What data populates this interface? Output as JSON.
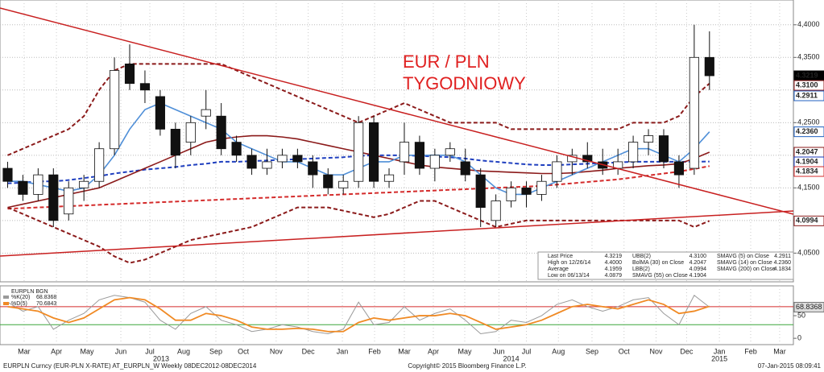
{
  "chart_data": {
    "type": "candlestick",
    "annotation": [
      "EUR / PLN",
      "TYGODNIOWY"
    ],
    "categories": [
      null,
      null,
      null,
      null,
      null,
      null,
      null,
      null,
      null,
      null,
      null,
      null,
      null,
      null,
      null,
      null,
      null,
      null,
      null,
      null,
      null,
      null,
      null,
      null,
      null,
      null,
      null,
      null,
      null,
      null,
      null,
      null,
      null,
      null,
      null,
      null,
      null,
      null,
      null,
      null,
      null,
      null,
      null,
      null,
      null,
      null,
      null
    ],
    "open": [
      4.18,
      4.16,
      4.14,
      4.17,
      4.11,
      4.15,
      4.16,
      4.21,
      4.34,
      4.31,
      4.29,
      4.24,
      4.22,
      4.26,
      4.26,
      4.22,
      4.2,
      4.18,
      4.19,
      4.2,
      4.19,
      4.17,
      4.15,
      4.16,
      4.25,
      4.16,
      4.19,
      4.22,
      4.18,
      4.2,
      4.19,
      4.17,
      4.1,
      4.13,
      4.15,
      4.14,
      4.16,
      4.19,
      4.2,
      4.19,
      4.18,
      4.19,
      4.22,
      4.23,
      4.19,
      4.18,
      4.35
    ],
    "high": [
      4.19,
      4.17,
      4.18,
      4.18,
      4.16,
      4.17,
      4.22,
      4.35,
      4.37,
      4.33,
      4.3,
      4.25,
      4.26,
      4.3,
      4.28,
      4.23,
      4.21,
      4.21,
      4.21,
      4.21,
      4.2,
      4.18,
      4.17,
      4.26,
      4.26,
      4.18,
      4.25,
      4.23,
      4.21,
      4.22,
      4.21,
      4.18,
      4.14,
      4.16,
      4.16,
      4.17,
      4.2,
      4.21,
      4.22,
      4.21,
      4.21,
      4.23,
      4.24,
      4.24,
      4.2,
      4.4,
      4.39
    ],
    "low": [
      4.15,
      4.13,
      4.13,
      4.09,
      4.1,
      4.13,
      4.15,
      4.2,
      4.3,
      4.28,
      4.23,
      4.18,
      4.2,
      4.24,
      4.2,
      4.19,
      4.17,
      4.17,
      4.18,
      4.18,
      4.15,
      4.14,
      4.14,
      4.15,
      4.15,
      4.15,
      4.17,
      4.17,
      4.16,
      4.19,
      4.16,
      4.09,
      4.09,
      4.12,
      4.12,
      4.13,
      4.15,
      4.17,
      4.18,
      4.17,
      4.17,
      4.18,
      4.2,
      4.18,
      4.15,
      4.17,
      4.3
    ],
    "close": [
      4.16,
      4.14,
      4.17,
      4.1,
      4.15,
      4.16,
      4.21,
      4.33,
      4.31,
      4.3,
      4.24,
      4.2,
      4.25,
      4.27,
      4.21,
      4.2,
      4.18,
      4.19,
      4.2,
      4.19,
      4.17,
      4.15,
      4.16,
      4.25,
      4.16,
      4.17,
      4.22,
      4.18,
      4.2,
      4.21,
      4.17,
      4.12,
      4.13,
      4.15,
      4.14,
      4.16,
      4.19,
      4.2,
      4.19,
      4.18,
      4.19,
      4.22,
      4.23,
      4.19,
      4.17,
      4.35,
      4.3219
    ],
    "series": [
      {
        "name": "SMAVG (55) on Close",
        "color": "#1f3fbf",
        "dash": true,
        "values": [
          4.157,
          4.158,
          4.16,
          4.16,
          4.162,
          4.165,
          4.168,
          4.172,
          4.175,
          4.178,
          4.18,
          4.182,
          4.185,
          4.187,
          4.19,
          4.19,
          4.191,
          4.192,
          4.193,
          4.194,
          4.195,
          4.196,
          4.197,
          4.199,
          4.2,
          4.2,
          4.2,
          4.199,
          4.198,
          4.197,
          4.195,
          4.192,
          4.19,
          4.188,
          4.186,
          4.185,
          4.185,
          4.186,
          4.187,
          4.188,
          4.189,
          4.19,
          4.19,
          4.19,
          4.19,
          4.19,
          4.1904
        ]
      },
      {
        "name": "SMAVG (200) on Close",
        "color": "#d42b2b",
        "dash": true,
        "values": [
          4.118,
          4.119,
          4.12,
          4.121,
          4.122,
          4.123,
          4.124,
          4.125,
          4.126,
          4.127,
          4.128,
          4.129,
          4.13,
          4.131,
          4.132,
          4.133,
          4.134,
          4.135,
          4.136,
          4.137,
          4.138,
          4.139,
          4.14,
          4.141,
          4.142,
          4.143,
          4.144,
          4.145,
          4.146,
          4.147,
          4.148,
          4.149,
          4.15,
          4.151,
          4.152,
          4.153,
          4.155,
          4.157,
          4.159,
          4.161,
          4.163,
          4.166,
          4.169,
          4.172,
          4.175,
          4.179,
          4.1834
        ]
      },
      {
        "name": "BolMA (30) on Close",
        "color": "#8b1a1a",
        "dash": false,
        "values": [
          4.12,
          4.125,
          4.13,
          4.135,
          4.14,
          4.145,
          4.15,
          4.16,
          4.17,
          4.18,
          4.19,
          4.2,
          4.21,
          4.22,
          4.225,
          4.228,
          4.23,
          4.23,
          4.228,
          4.225,
          4.22,
          4.215,
          4.21,
          4.205,
          4.2,
          4.195,
          4.19,
          4.185,
          4.182,
          4.18,
          4.178,
          4.176,
          4.175,
          4.174,
          4.173,
          4.172,
          4.172,
          4.173,
          4.175,
          4.177,
          4.18,
          4.182,
          4.184,
          4.185,
          4.187,
          4.195,
          4.2047
        ]
      },
      {
        "name": "UBB(2)",
        "color": "#8b1a1a",
        "dash": true,
        "values": [
          4.2,
          4.21,
          4.22,
          4.23,
          4.24,
          4.26,
          4.3,
          4.33,
          4.34,
          4.34,
          4.34,
          4.34,
          4.34,
          4.34,
          4.34,
          4.33,
          4.32,
          4.31,
          4.3,
          4.29,
          4.28,
          4.27,
          4.26,
          4.25,
          4.26,
          4.27,
          4.28,
          4.27,
          4.26,
          4.25,
          4.25,
          4.25,
          4.25,
          4.24,
          4.24,
          4.24,
          4.24,
          4.24,
          4.24,
          4.24,
          4.24,
          4.25,
          4.25,
          4.25,
          4.26,
          4.29,
          4.31
        ]
      },
      {
        "name": "LBB(2)",
        "color": "#8b1a1a",
        "dash": true,
        "values": [
          4.12,
          4.11,
          4.1,
          4.09,
          4.08,
          4.07,
          4.06,
          4.045,
          4.035,
          4.04,
          4.05,
          4.06,
          4.07,
          4.075,
          4.08,
          4.085,
          4.09,
          4.1,
          4.11,
          4.12,
          4.12,
          4.12,
          4.115,
          4.11,
          4.105,
          4.11,
          4.12,
          4.13,
          4.13,
          4.12,
          4.11,
          4.1,
          4.09,
          4.095,
          4.1,
          4.1,
          4.1,
          4.1,
          4.1,
          4.1,
          4.1,
          4.1,
          4.1,
          4.1,
          4.1,
          4.09,
          4.0994
        ]
      },
      {
        "name": "SMAVG (14) on Close",
        "color": "#4f8fd8",
        "dash": false,
        "values": [
          4.16,
          4.16,
          4.155,
          4.15,
          4.145,
          4.15,
          4.17,
          4.2,
          4.24,
          4.27,
          4.28,
          4.27,
          4.26,
          4.25,
          4.24,
          4.22,
          4.21,
          4.2,
          4.19,
          4.19,
          4.18,
          4.17,
          4.17,
          4.18,
          4.19,
          4.19,
          4.2,
          4.2,
          4.2,
          4.2,
          4.19,
          4.17,
          4.15,
          4.14,
          4.14,
          4.15,
          4.16,
          4.17,
          4.18,
          4.19,
          4.2,
          4.21,
          4.21,
          4.2,
          4.19,
          4.21,
          4.236
        ]
      }
    ],
    "xlim": [
      -0.5,
      51.5
    ],
    "ylim": [
      4.006,
      4.438
    ],
    "yticks": [
      {
        "value": 4.4,
        "label": "4,4000"
      },
      {
        "value": 4.35,
        "label": "4,3500"
      },
      {
        "value": 4.3,
        "label": "4,3000"
      },
      {
        "value": 4.25,
        "label": "4,2500"
      },
      {
        "value": 4.2,
        "label": "4,2000"
      },
      {
        "value": 4.15,
        "label": "4,1500"
      },
      {
        "value": 4.1,
        "label": "4,1000"
      },
      {
        "value": 4.05,
        "label": "4,0500"
      }
    ],
    "xticks": [
      {
        "value": 1.08,
        "label": "Mar"
      },
      {
        "value": 3.2,
        "label": "Apr"
      },
      {
        "value": 5.2,
        "label": "May"
      },
      {
        "value": 7.42,
        "label": "Jun"
      },
      {
        "value": 9.32,
        "label": "Jul"
      },
      {
        "value": 11.54,
        "label": "Aug"
      },
      {
        "value": 13.65,
        "label": "Sep"
      },
      {
        "value": 15.45,
        "label": "Oct"
      },
      {
        "value": 17.6,
        "label": "Nov"
      },
      {
        "value": 19.7,
        "label": "Dec"
      },
      {
        "value": 21.94,
        "label": "Jan"
      },
      {
        "value": 24.05,
        "label": "Feb"
      },
      {
        "value": 26.0,
        "label": "Mar"
      },
      {
        "value": 27.9,
        "label": "Apr"
      },
      {
        "value": 29.96,
        "label": "May"
      },
      {
        "value": 32.2,
        "label": "Jun"
      },
      {
        "value": 34.0,
        "label": "Jul"
      },
      {
        "value": 36.1,
        "label": "Aug"
      },
      {
        "value": 38.3,
        "label": "Sep"
      },
      {
        "value": 40.4,
        "label": "Oct"
      },
      {
        "value": 42.5,
        "label": "Nov"
      },
      {
        "value": 44.5,
        "label": "Dec"
      },
      {
        "value": 46.65,
        "label": "Jan"
      },
      {
        "value": 48.7,
        "label": "Feb"
      },
      {
        "value": 50.6,
        "label": "Mar"
      }
    ],
    "year_ticks": [
      {
        "value": 10.06,
        "label": "2013"
      },
      {
        "value": 33.0,
        "label": "2014"
      },
      {
        "value": 46.65,
        "label": "2015"
      }
    ],
    "grid": true,
    "price_labels": [
      {
        "value": 4.3219,
        "label": "4.3219",
        "color": "#000000"
      },
      {
        "value": 4.31,
        "label": "4.3100",
        "color": "#8b1a1a"
      },
      {
        "value": 4.2911,
        "label": "4.2911",
        "color": "#1f5fbf"
      },
      {
        "value": 4.236,
        "label": "4.2360",
        "color": "#1f5fbf"
      },
      {
        "value": 4.2047,
        "label": "4.2047",
        "color": "#8b1a1a"
      },
      {
        "value": 4.1904,
        "label": "4.1904",
        "color": "#1f3fbf"
      },
      {
        "value": 4.1834,
        "label": "4.1834",
        "color": "#d42b2b"
      },
      {
        "value": 4.0994,
        "label": "4.0994",
        "color": "#8b1a1a"
      }
    ],
    "legend": [
      [
        [
          "Last Price",
          "4.3219"
        ],
        [
          "High on 12/26/14",
          "4.4000"
        ],
        [
          "Average",
          "4.1959"
        ],
        [
          "Low on 06/13/14",
          "4.0879"
        ]
      ],
      [
        [
          "UBB(2)",
          "4.3100"
        ],
        [
          "BolMA (30) on Close",
          "4.2047"
        ],
        [
          "LBB(2)",
          "4.0994"
        ],
        [
          "SMAVG (55) on Close",
          "4.1904"
        ]
      ],
      [
        [
          "SMAVG (5) on Close",
          "4.2911"
        ],
        [
          "SMAVG (14) on Close",
          "4.2360"
        ],
        [
          "SMAVG (200) on Close",
          "4.1834"
        ]
      ]
    ],
    "lower": {
      "title": "EURPLN BGN",
      "ylim": [
        -14,
        116
      ],
      "yticks": [
        50,
        0
      ],
      "levels": [
        {
          "value": 70,
          "color": "#d42b2b"
        },
        {
          "value": 30,
          "color": "#3aa63a"
        }
      ],
      "series": [
        {
          "name": "%K(20)",
          "label": "68.8368",
          "color": "#9a9a9a",
          "values": [
            80,
            60,
            70,
            20,
            40,
            55,
            85,
            95,
            90,
            80,
            40,
            20,
            55,
            70,
            40,
            30,
            15,
            20,
            30,
            25,
            15,
            10,
            20,
            80,
            30,
            35,
            70,
            40,
            55,
            65,
            40,
            10,
            15,
            40,
            35,
            50,
            75,
            85,
            70,
            60,
            70,
            85,
            90,
            55,
            30,
            95,
            68.8368
          ]
        },
        {
          "name": "%D(5)",
          "label": "70.6843",
          "color": "#f08a24",
          "values": [
            70,
            65,
            60,
            45,
            35,
            45,
            65,
            85,
            90,
            85,
            65,
            40,
            40,
            55,
            50,
            40,
            25,
            20,
            20,
            22,
            20,
            15,
            15,
            35,
            45,
            40,
            45,
            50,
            50,
            55,
            50,
            35,
            20,
            25,
            30,
            40,
            55,
            70,
            75,
            70,
            65,
            75,
            85,
            75,
            55,
            60,
            70.6843
          ]
        }
      ]
    },
    "footer": [
      "EURPLN Curncy (EUR-PLN X-RATE) AT_EURPLN_W  Weekly 08DEC2012-08DEC2014",
      "Copyright© 2015 Bloomberg Finance L.P.",
      "07-Jan-2015 08:09:41"
    ]
  }
}
